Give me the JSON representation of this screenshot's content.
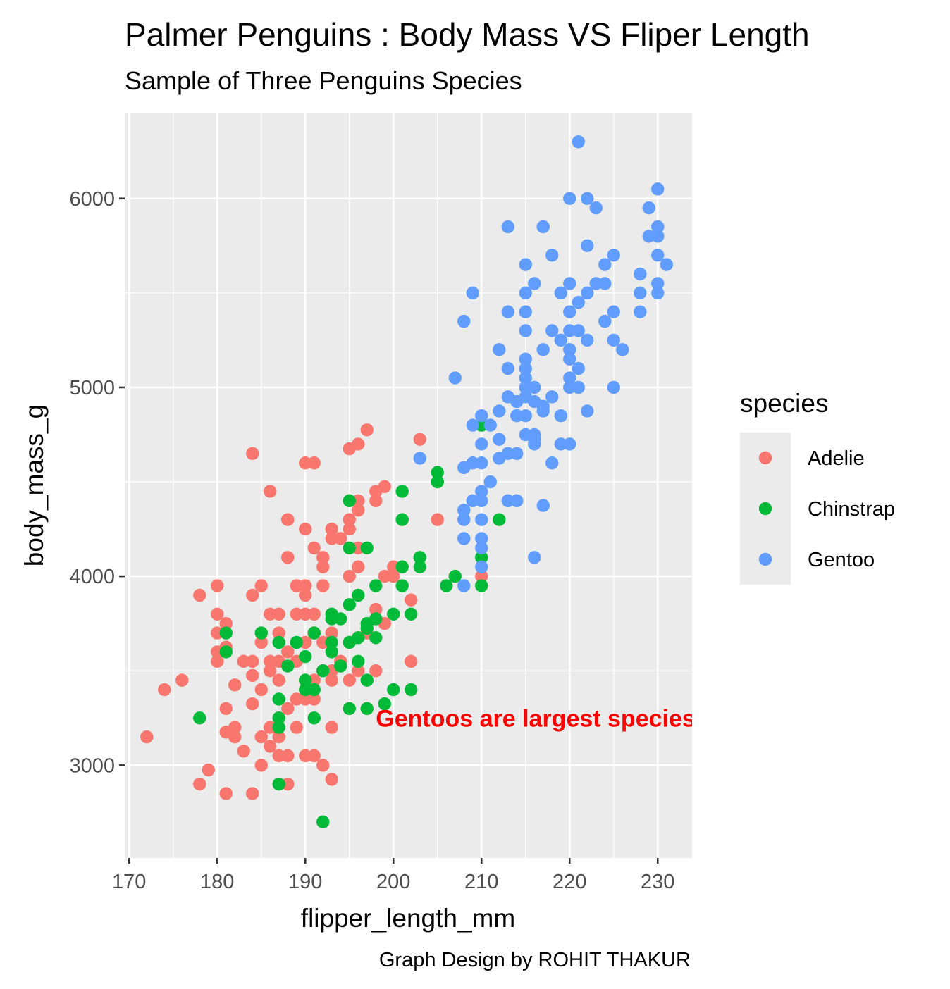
{
  "colors": {
    "Adelie": "#F8766D",
    "Chinstrap": "#00BA38",
    "Gentoo": "#619CFF",
    "annotation": "#FF0000",
    "panel": "#EBEBEB",
    "grid": "#FFFFFF"
  },
  "chart_data": {
    "type": "scatter",
    "title": "Palmer Penguins : Body Mass VS Fliper Length",
    "subtitle": "Sample of Three Penguins Species",
    "xlabel": "flipper_length_mm",
    "ylabel": "body_mass_g",
    "caption": "Graph Design by ROHIT THAKUR",
    "xlim": [
      169.5,
      233.9
    ],
    "ylim": [
      2509,
      6454
    ],
    "xticks": [
      170,
      180,
      190,
      200,
      210,
      220,
      230
    ],
    "yticks": [
      3000,
      4000,
      5000,
      6000
    ],
    "grid": true,
    "legend": {
      "title": "species",
      "placement": "right"
    },
    "annotation": {
      "text": "Gentoos are largest species",
      "x": 198,
      "y": 3250
    },
    "series": [
      {
        "name": "Adelie",
        "points": [
          [
            172,
            3150
          ],
          [
            174,
            3400
          ],
          [
            176,
            3450
          ],
          [
            178,
            2900
          ],
          [
            178,
            3900
          ],
          [
            179,
            2975
          ],
          [
            180,
            3550
          ],
          [
            180,
            3600
          ],
          [
            180,
            3700
          ],
          [
            180,
            3800
          ],
          [
            180,
            3950
          ],
          [
            181,
            2850
          ],
          [
            181,
            3175
          ],
          [
            181,
            3300
          ],
          [
            181,
            3625
          ],
          [
            181,
            3750
          ],
          [
            182,
            3150
          ],
          [
            182,
            3200
          ],
          [
            182,
            3425
          ],
          [
            183,
            3075
          ],
          [
            183,
            3550
          ],
          [
            184,
            2850
          ],
          [
            184,
            3325
          ],
          [
            184,
            3475
          ],
          [
            184,
            3550
          ],
          [
            184,
            3900
          ],
          [
            184,
            4650
          ],
          [
            185,
            3000
          ],
          [
            185,
            3150
          ],
          [
            185,
            3400
          ],
          [
            185,
            3650
          ],
          [
            185,
            3700
          ],
          [
            185,
            3950
          ],
          [
            186,
            3100
          ],
          [
            186,
            3200
          ],
          [
            186,
            3500
          ],
          [
            186,
            3550
          ],
          [
            186,
            3800
          ],
          [
            186,
            4450
          ],
          [
            187,
            3050
          ],
          [
            187,
            3150
          ],
          [
            187,
            3250
          ],
          [
            187,
            3450
          ],
          [
            187,
            3550
          ],
          [
            187,
            3700
          ],
          [
            187,
            3800
          ],
          [
            188,
            2900
          ],
          [
            188,
            3050
          ],
          [
            188,
            3300
          ],
          [
            188,
            3600
          ],
          [
            188,
            4100
          ],
          [
            188,
            4300
          ],
          [
            189,
            3200
          ],
          [
            189,
            3350
          ],
          [
            189,
            3550
          ],
          [
            189,
            3800
          ],
          [
            189,
            3950
          ],
          [
            190,
            3050
          ],
          [
            190,
            3350
          ],
          [
            190,
            3400
          ],
          [
            190,
            3450
          ],
          [
            190,
            3650
          ],
          [
            190,
            3800
          ],
          [
            190,
            3900
          ],
          [
            190,
            3950
          ],
          [
            190,
            4250
          ],
          [
            190,
            4600
          ],
          [
            191,
            3050
          ],
          [
            191,
            3350
          ],
          [
            191,
            3450
          ],
          [
            191,
            3700
          ],
          [
            191,
            3800
          ],
          [
            191,
            4150
          ],
          [
            191,
            4600
          ],
          [
            192,
            3000
          ],
          [
            192,
            3500
          ],
          [
            192,
            3650
          ],
          [
            192,
            3950
          ],
          [
            192,
            4050
          ],
          [
            192,
            4100
          ],
          [
            193,
            2925
          ],
          [
            193,
            3200
          ],
          [
            193,
            3450
          ],
          [
            193,
            3500
          ],
          [
            193,
            3700
          ],
          [
            193,
            4200
          ],
          [
            193,
            4250
          ],
          [
            194,
            3550
          ],
          [
            194,
            4200
          ],
          [
            195,
            3300
          ],
          [
            195,
            3450
          ],
          [
            195,
            3650
          ],
          [
            195,
            4000
          ],
          [
            195,
            4250
          ],
          [
            195,
            4300
          ],
          [
            195,
            4675
          ],
          [
            196,
            3500
          ],
          [
            196,
            3675
          ],
          [
            196,
            4050
          ],
          [
            196,
            4150
          ],
          [
            196,
            4350
          ],
          [
            196,
            4400
          ],
          [
            196,
            4700
          ],
          [
            197,
            3300
          ],
          [
            197,
            3700
          ],
          [
            197,
            4775
          ],
          [
            198,
            3500
          ],
          [
            198,
            3825
          ],
          [
            198,
            4400
          ],
          [
            198,
            4450
          ],
          [
            199,
            3750
          ],
          [
            199,
            4000
          ],
          [
            199,
            4475
          ],
          [
            200,
            4000
          ],
          [
            200,
            4050
          ],
          [
            202,
            3550
          ],
          [
            202,
            3875
          ],
          [
            203,
            4725
          ],
          [
            205,
            4300
          ],
          [
            210,
            4000
          ],
          [
            210,
            3950
          ]
        ]
      },
      {
        "name": "Chinstrap",
        "points": [
          [
            178,
            3250
          ],
          [
            181,
            3600
          ],
          [
            181,
            3700
          ],
          [
            185,
            3700
          ],
          [
            187,
            2900
          ],
          [
            187,
            3200
          ],
          [
            187,
            3250
          ],
          [
            187,
            3350
          ],
          [
            187,
            3650
          ],
          [
            188,
            3525
          ],
          [
            189,
            3650
          ],
          [
            190,
            3400
          ],
          [
            190,
            3450
          ],
          [
            190,
            3575
          ],
          [
            191,
            3250
          ],
          [
            191,
            3400
          ],
          [
            191,
            3700
          ],
          [
            192,
            2700
          ],
          [
            192,
            3500
          ],
          [
            193,
            3600
          ],
          [
            193,
            3650
          ],
          [
            193,
            3775
          ],
          [
            193,
            3800
          ],
          [
            194,
            3525
          ],
          [
            194,
            3775
          ],
          [
            195,
            3300
          ],
          [
            195,
            3650
          ],
          [
            195,
            3850
          ],
          [
            195,
            4150
          ],
          [
            195,
            4400
          ],
          [
            196,
            3550
          ],
          [
            196,
            3675
          ],
          [
            196,
            3900
          ],
          [
            197,
            3300
          ],
          [
            197,
            3450
          ],
          [
            197,
            3725
          ],
          [
            197,
            3750
          ],
          [
            197,
            4150
          ],
          [
            198,
            3675
          ],
          [
            198,
            3775
          ],
          [
            198,
            3950
          ],
          [
            199,
            3325
          ],
          [
            200,
            3400
          ],
          [
            200,
            3800
          ],
          [
            201,
            3950
          ],
          [
            201,
            4050
          ],
          [
            201,
            4300
          ],
          [
            201,
            4450
          ],
          [
            202,
            3400
          ],
          [
            202,
            3800
          ],
          [
            203,
            4050
          ],
          [
            203,
            4100
          ],
          [
            205,
            4500
          ],
          [
            205,
            4550
          ],
          [
            206,
            3950
          ],
          [
            207,
            4000
          ],
          [
            210,
            3950
          ],
          [
            210,
            4100
          ],
          [
            210,
            4800
          ],
          [
            212,
            4300
          ]
        ]
      },
      {
        "name": "Gentoo",
        "points": [
          [
            203,
            4625
          ],
          [
            207,
            5050
          ],
          [
            208,
            3950
          ],
          [
            208,
            4200
          ],
          [
            208,
            4300
          ],
          [
            208,
            4350
          ],
          [
            208,
            4575
          ],
          [
            208,
            5350
          ],
          [
            209,
            4400
          ],
          [
            209,
            4600
          ],
          [
            209,
            4800
          ],
          [
            209,
            5500
          ],
          [
            210,
            4050
          ],
          [
            210,
            4150
          ],
          [
            210,
            4200
          ],
          [
            210,
            4300
          ],
          [
            210,
            4400
          ],
          [
            210,
            4450
          ],
          [
            210,
            4600
          ],
          [
            210,
            4700
          ],
          [
            210,
            4850
          ],
          [
            211,
            4500
          ],
          [
            211,
            4800
          ],
          [
            212,
            4625
          ],
          [
            212,
            4725
          ],
          [
            212,
            4875
          ],
          [
            212,
            5200
          ],
          [
            213,
            4400
          ],
          [
            213,
            4650
          ],
          [
            213,
            4950
          ],
          [
            213,
            5100
          ],
          [
            213,
            5400
          ],
          [
            213,
            5850
          ],
          [
            214,
            4400
          ],
          [
            214,
            4650
          ],
          [
            214,
            4850
          ],
          [
            214,
            4925
          ],
          [
            215,
            4750
          ],
          [
            215,
            4850
          ],
          [
            215,
            4950
          ],
          [
            215,
            5000
          ],
          [
            215,
            5050
          ],
          [
            215,
            5100
          ],
          [
            215,
            5150
          ],
          [
            215,
            5300
          ],
          [
            215,
            5400
          ],
          [
            215,
            5500
          ],
          [
            215,
            5650
          ],
          [
            216,
            4100
          ],
          [
            216,
            4700
          ],
          [
            216,
            4725
          ],
          [
            216,
            4750
          ],
          [
            216,
            4925
          ],
          [
            216,
            5000
          ],
          [
            216,
            5550
          ],
          [
            217,
            4375
          ],
          [
            217,
            4900
          ],
          [
            217,
            4875
          ],
          [
            217,
            5200
          ],
          [
            217,
            5850
          ],
          [
            218,
            4600
          ],
          [
            218,
            4950
          ],
          [
            218,
            5300
          ],
          [
            218,
            5700
          ],
          [
            219,
            4700
          ],
          [
            219,
            4850
          ],
          [
            219,
            5250
          ],
          [
            219,
            5500
          ],
          [
            220,
            4700
          ],
          [
            220,
            5000
          ],
          [
            220,
            5050
          ],
          [
            220,
            5150
          ],
          [
            220,
            5200
          ],
          [
            220,
            5300
          ],
          [
            220,
            5400
          ],
          [
            220,
            5550
          ],
          [
            220,
            6000
          ],
          [
            221,
            5000
          ],
          [
            221,
            5100
          ],
          [
            221,
            5300
          ],
          [
            221,
            5450
          ],
          [
            221,
            6300
          ],
          [
            222,
            4875
          ],
          [
            222,
            5250
          ],
          [
            222,
            5500
          ],
          [
            222,
            5750
          ],
          [
            222,
            6000
          ],
          [
            223,
            5550
          ],
          [
            223,
            5950
          ],
          [
            224,
            5350
          ],
          [
            224,
            5550
          ],
          [
            224,
            5650
          ],
          [
            225,
            5000
          ],
          [
            225,
            5250
          ],
          [
            225,
            5400
          ],
          [
            225,
            5700
          ],
          [
            226,
            5200
          ],
          [
            228,
            5400
          ],
          [
            228,
            5500
          ],
          [
            228,
            5600
          ],
          [
            229,
            5800
          ],
          [
            229,
            5950
          ],
          [
            230,
            5500
          ],
          [
            230,
            5550
          ],
          [
            230,
            5700
          ],
          [
            230,
            5800
          ],
          [
            230,
            5850
          ],
          [
            230,
            6050
          ],
          [
            231,
            5650
          ]
        ]
      }
    ]
  }
}
